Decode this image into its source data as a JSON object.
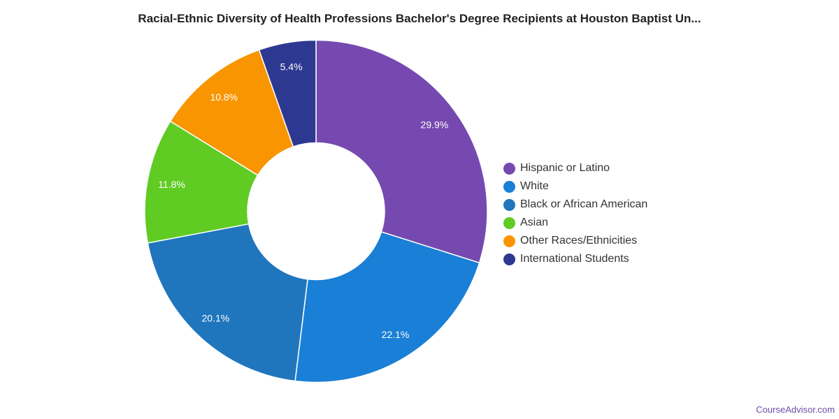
{
  "chart_data": {
    "type": "pie",
    "variant": "donut",
    "title": "Racial-Ethnic Diversity of Health Professions Bachelor's Degree Recipients at Houston Baptist Un...",
    "categories": [
      "Hispanic or Latino",
      "White",
      "Black or African American",
      "Asian",
      "Other Races/Ethnicities",
      "International Students"
    ],
    "values": [
      29.9,
      22.1,
      20.1,
      11.8,
      10.8,
      5.4
    ],
    "labels": [
      "29.9%",
      "22.1%",
      "20.1%",
      "11.8%",
      "10.8%",
      "5.4%"
    ],
    "colors": [
      "#7649b0",
      "#1a7fd6",
      "#2076bd",
      "#5fcb23",
      "#f89500",
      "#2d3990"
    ],
    "legend_position": "right"
  },
  "watermark": "CourseAdvisor.com"
}
